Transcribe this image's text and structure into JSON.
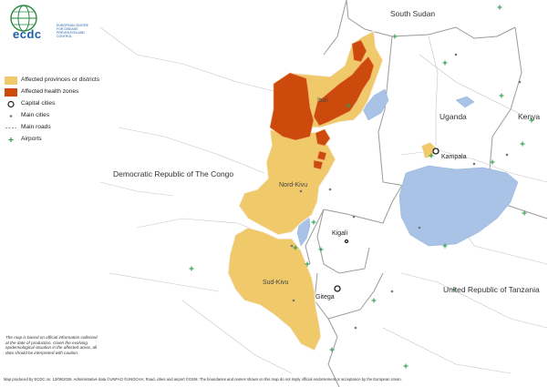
{
  "logo": {
    "text": "ecdc",
    "subtitle": "EUROPEAN CENTRE FOR DISEASE PREVENTION AND CONTROL"
  },
  "legend": {
    "items": [
      {
        "symbol": "fill",
        "color": "#f0c96a",
        "label": "Affected provinces or districts"
      },
      {
        "symbol": "fill",
        "color": "#cc4a0c",
        "label": "Affected health zones"
      },
      {
        "symbol": "capital-circle-icon",
        "label": "Capital cities"
      },
      {
        "symbol": "city-dot-icon",
        "label": "Main cities"
      },
      {
        "symbol": "road-dash-icon",
        "label": "Main roads"
      },
      {
        "symbol": "airport-cross-icon",
        "color": "#2e9e4f",
        "label": "Airports"
      }
    ]
  },
  "map_labels": {
    "south_sudan": "South Sudan",
    "uganda": "Uganda",
    "kenya": "Kenya",
    "drc": "Democratic Republic of The Congo",
    "tanzania": "United Republic of Tanzania",
    "ituri": "Ituri",
    "nord_kivu": "Nord-Kivu",
    "sud_kivu": "Sud-Kivu",
    "kampala": "Kampala",
    "kigali": "Kigali",
    "gitega": "Gitega"
  },
  "colors": {
    "affected_province": "#f0c96a",
    "affected_zone": "#cc4a0c",
    "water": "#a9c3e6",
    "border": "#9a9a9a",
    "airport": "#2e9e4f"
  },
  "note": "The map is based on official information collected at the date of production. Given the evolving epidemiological situation in the affected areas, all data should be interpreted with caution.",
  "footer": "Map produced by ECDC on: 13/06/2026. Administrative data ©UNFAO ©UNOCHA; Road, cities and airport ©OSM. The boundaries and names shown on this map do not imply official endorsement or acceptance by the European Union."
}
